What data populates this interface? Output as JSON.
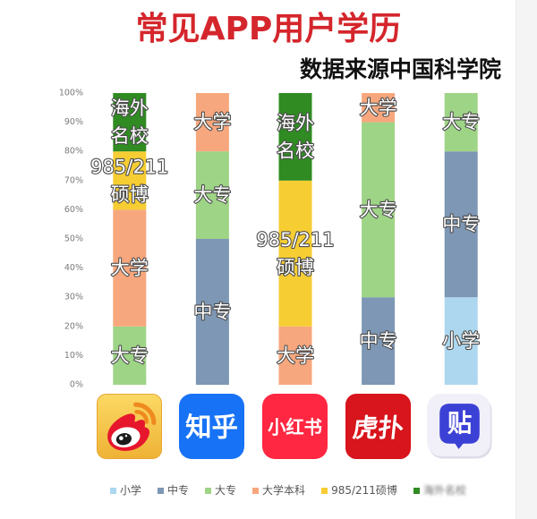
{
  "chart_data": {
    "type": "bar",
    "stacked": true,
    "title": "常见APP用户学历",
    "subtitle": "数据来源中国科学院",
    "categories": [
      {
        "icon": "weibo-logo-icon"
      },
      {
        "icon": "zhihu-logo-icon",
        "logo_text": "知乎"
      },
      {
        "icon": "xiaohongshu-logo-icon",
        "logo_text": "小红书"
      },
      {
        "icon": "hupu-logo-icon",
        "logo_text": "虎扑"
      },
      {
        "icon": "tieba-logo-icon",
        "logo_text": "贴"
      }
    ],
    "series": [
      {
        "name": "小学",
        "color": "#acd7ef",
        "label_lines": [
          "小学"
        ],
        "values": [
          0,
          0,
          0,
          0,
          30
        ]
      },
      {
        "name": "中专",
        "color": "#7d97b4",
        "label_lines": [
          "中专"
        ],
        "values": [
          0,
          50,
          0,
          30,
          50
        ]
      },
      {
        "name": "大专",
        "color": "#9ed486",
        "label_lines": [
          "大专"
        ],
        "values": [
          20,
          30,
          0,
          60,
          20
        ]
      },
      {
        "name": "大学本科",
        "color": "#f7a77d",
        "label_lines": [
          "大学"
        ],
        "values": [
          40,
          20,
          20,
          10,
          0
        ]
      },
      {
        "name": "985/211硕博",
        "color": "#f6cd33",
        "label_lines": [
          "985/211",
          "硕博"
        ],
        "values": [
          20,
          0,
          50,
          0,
          0
        ]
      },
      {
        "name": "海外名校",
        "color": "#2f8b22",
        "label_lines": [
          "海外",
          "名校"
        ],
        "values": [
          20,
          0,
          30,
          0,
          0
        ]
      }
    ],
    "ylim": [
      0,
      100
    ],
    "yticks": [
      0,
      10,
      20,
      30,
      40,
      50,
      60,
      70,
      80,
      90,
      100
    ],
    "ytick_labels": [
      "0%",
      "10%",
      "20%",
      "30%",
      "40%",
      "50%",
      "60%",
      "70%",
      "80%",
      "90%",
      "100%"
    ],
    "grid": false,
    "legend": "bottom"
  }
}
